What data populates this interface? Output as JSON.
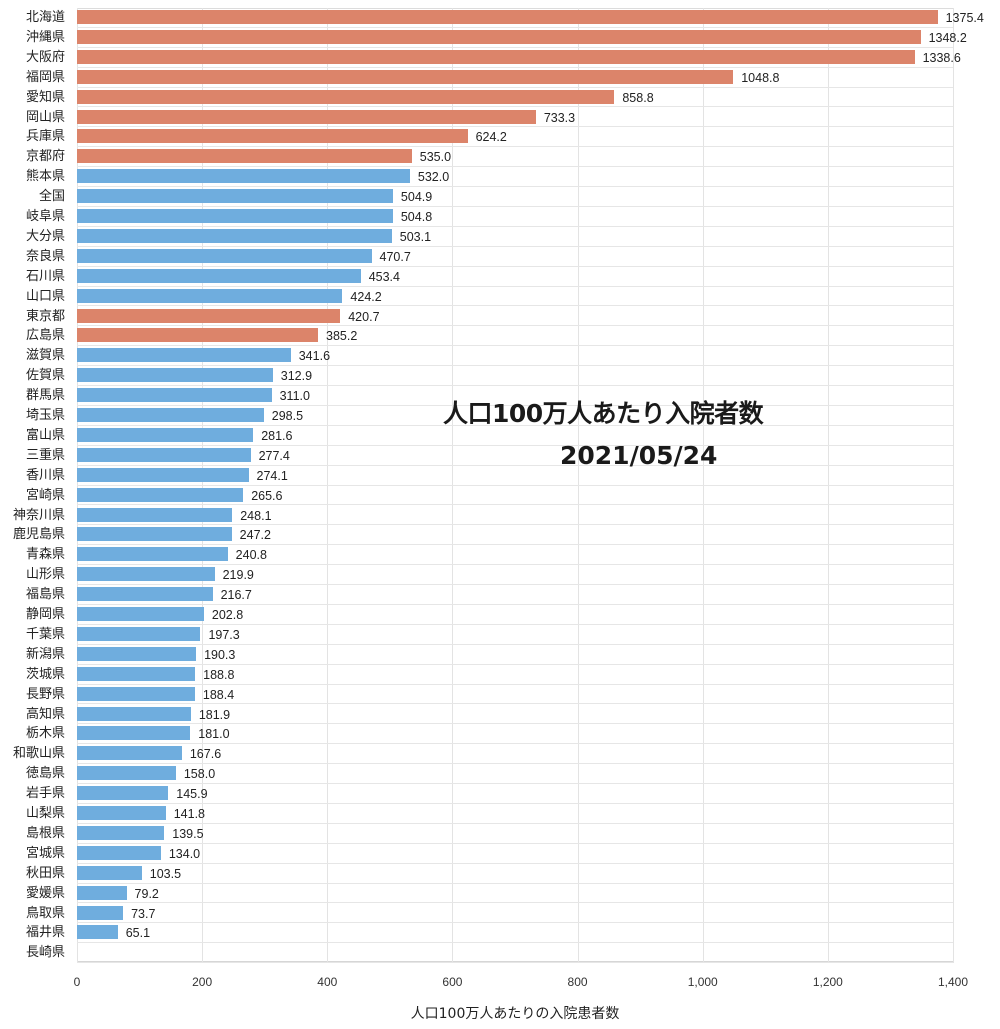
{
  "chart_data": {
    "type": "bar",
    "orientation": "horizontal",
    "title": "人口100万人あたり入院者数",
    "subtitle": "2021/05/24",
    "xlabel": "人口100万人あたりの入院患者数",
    "ylabel": "",
    "xlim": [
      0,
      1400
    ],
    "xticks": [
      0,
      200,
      400,
      600,
      800,
      1000,
      1200,
      1400
    ],
    "xtick_labels": [
      "0",
      "200",
      "400",
      "600",
      "800",
      "1,000",
      "1,200",
      "1,400"
    ],
    "grid": true,
    "legend": null,
    "colors": {
      "highlight": "#dc846a",
      "normal": "#6fadde"
    },
    "categories": [
      "北海道",
      "沖縄県",
      "大阪府",
      "福岡県",
      "愛知県",
      "岡山県",
      "兵庫県",
      "京都府",
      "熊本県",
      "全国",
      "岐阜県",
      "大分県",
      "奈良県",
      "石川県",
      "山口県",
      "東京都",
      "広島県",
      "滋賀県",
      "佐賀県",
      "群馬県",
      "埼玉県",
      "富山県",
      "三重県",
      "香川県",
      "宮崎県",
      "神奈川県",
      "鹿児島県",
      "青森県",
      "山形県",
      "福島県",
      "静岡県",
      "千葉県",
      "新潟県",
      "茨城県",
      "長野県",
      "高知県",
      "栃木県",
      "和歌山県",
      "徳島県",
      "岩手県",
      "山梨県",
      "島根県",
      "宮城県",
      "秋田県",
      "愛媛県",
      "鳥取県",
      "福井県",
      "長崎県"
    ],
    "values": [
      1375.4,
      1348.2,
      1338.6,
      1048.8,
      858.8,
      733.3,
      624.2,
      535.0,
      532.0,
      504.9,
      504.8,
      503.1,
      470.7,
      453.4,
      424.2,
      420.7,
      385.2,
      341.6,
      312.9,
      311.0,
      298.5,
      281.6,
      277.4,
      274.1,
      265.6,
      248.1,
      247.2,
      240.8,
      219.9,
      216.7,
      202.8,
      197.3,
      190.3,
      188.8,
      188.4,
      181.9,
      181.0,
      167.6,
      158.0,
      145.9,
      141.8,
      139.5,
      134.0,
      103.5,
      79.2,
      73.7,
      65.1,
      null
    ],
    "value_labels": [
      "1375.4",
      "1348.2",
      "1338.6",
      "1048.8",
      "858.8",
      "733.3",
      "624.2",
      "535.0",
      "532.0",
      "504.9",
      "504.8",
      "503.1",
      "470.7",
      "453.4",
      "424.2",
      "420.7",
      "385.2",
      "341.6",
      "312.9",
      "311.0",
      "298.5",
      "281.6",
      "277.4",
      "274.1",
      "265.6",
      "248.1",
      "247.2",
      "240.8",
      "219.9",
      "216.7",
      "202.8",
      "197.3",
      "190.3",
      "188.8",
      "188.4",
      "181.9",
      "181.0",
      "167.6",
      "158.0",
      "145.9",
      "141.8",
      "139.5",
      "134.0",
      "103.5",
      "79.2",
      "73.7",
      "65.1",
      ""
    ],
    "highlighted": [
      "北海道",
      "沖縄県",
      "大阪府",
      "福岡県",
      "愛知県",
      "岡山県",
      "兵庫県",
      "京都府",
      "東京都",
      "広島県"
    ]
  }
}
